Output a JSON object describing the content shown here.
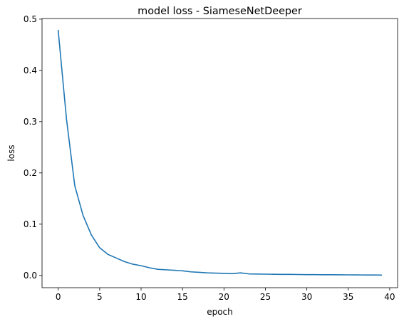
{
  "chart_data": {
    "type": "line",
    "title": "model loss - SiameseNetDeeper",
    "xlabel": "epoch",
    "ylabel": "loss",
    "xlim": [
      -1.95,
      40.95
    ],
    "ylim": [
      -0.0239,
      0.5012
    ],
    "xticks": [
      0,
      5,
      10,
      15,
      20,
      25,
      30,
      35,
      40
    ],
    "yticks": [
      0.0,
      0.1,
      0.2,
      0.3,
      0.4,
      0.5
    ],
    "ytick_labels": [
      "0.0",
      "0.1",
      "0.2",
      "0.3",
      "0.4",
      "0.5"
    ],
    "grid": false,
    "legend": false,
    "series": [
      {
        "color": "#1f77b4",
        "x": [
          0,
          1,
          2,
          3,
          4,
          5,
          6,
          7,
          8,
          9,
          10,
          11,
          12,
          13,
          14,
          15,
          16,
          17,
          18,
          19,
          20,
          21,
          22,
          23,
          24,
          25,
          26,
          27,
          28,
          29,
          30,
          31,
          32,
          33,
          34,
          35,
          36,
          37,
          38,
          39
        ],
        "y": [
          0.478,
          0.305,
          0.175,
          0.117,
          0.079,
          0.054,
          0.041,
          0.034,
          0.027,
          0.022,
          0.019,
          0.015,
          0.012,
          0.011,
          0.01,
          0.009,
          0.007,
          0.006,
          0.005,
          0.0045,
          0.004,
          0.0035,
          0.005,
          0.003,
          0.0028,
          0.0025,
          0.0023,
          0.0021,
          0.002,
          0.0018,
          0.0016,
          0.0015,
          0.0014,
          0.0013,
          0.0012,
          0.0011,
          0.001,
          0.0009,
          0.0008,
          0.0007
        ]
      }
    ]
  }
}
